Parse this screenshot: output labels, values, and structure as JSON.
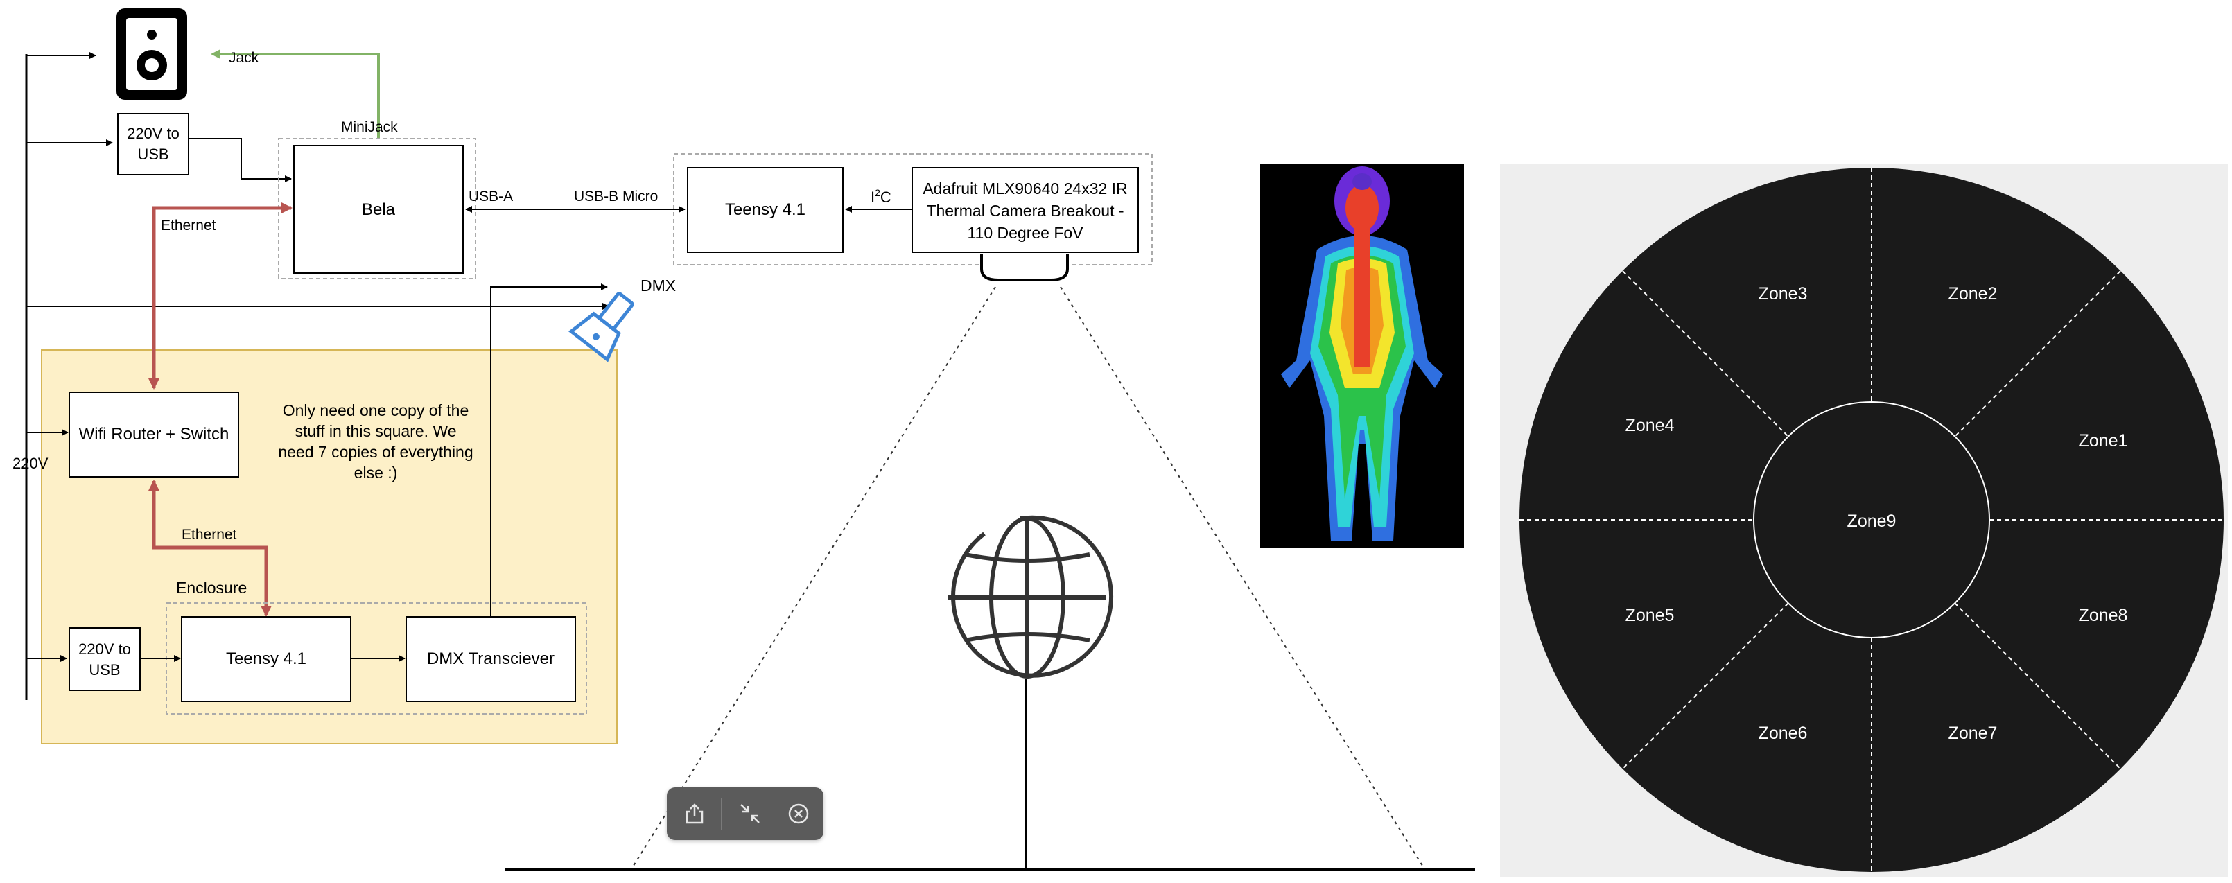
{
  "diagram": {
    "speaker_jack_label": "Jack",
    "minijack_label": "MiniJack",
    "psu_top_label": "220V to USB",
    "bela_label": "Bela",
    "usb_a_label": "USB-A",
    "usb_b_label": "USB-B Micro",
    "teensy_top_label": "Teensy 4.1",
    "i2c_label": "I",
    "i2c_sup": "2",
    "i2c_suffix": "C",
    "camera_label_line1": "Adafruit MLX90640 24x32 IR",
    "camera_label_line2": "Thermal Camera Breakout -",
    "camera_label_line3": "110 Degree FoV",
    "ethernet_top_label": "Ethernet",
    "dmx_label": "DMX",
    "power_label": "220V",
    "router_label": "Wifi Router + Switch",
    "note_line1": "Only need one copy of the",
    "note_line2": "stuff in this square. We",
    "note_line3": "need 7 copies of everything",
    "note_line4": "else :)",
    "ethernet_bottom_label": "Ethernet",
    "enclosure_label": "Enclosure",
    "psu_bottom_label_line1": "220V to",
    "psu_bottom_label_line2": "USB",
    "psu_top_label_line1": "220V to",
    "psu_top_label_line2": "USB",
    "teensy_bottom_label": "Teensy 4.1",
    "dmx_transceiver_label": "DMX Transciever"
  },
  "zones": {
    "zone1": "Zone1",
    "zone2": "Zone2",
    "zone3": "Zone3",
    "zone4": "Zone4",
    "zone5": "Zone5",
    "zone6": "Zone6",
    "zone7": "Zone7",
    "zone8": "Zone8",
    "zone9": "Zone9"
  },
  "colors": {
    "ethernet": "#b85450",
    "audio": "#82b366",
    "dmx_icon": "#3d85d6",
    "square_fill": "#fdf0c8",
    "square_border": "#d6b656",
    "zone_fill": "#1a1a1a",
    "zone_bg": "#eeeeee"
  },
  "toolbar": {
    "share_icon": "share-icon",
    "collapse_icon": "collapse-icon",
    "close_icon": "close-circle-icon"
  }
}
